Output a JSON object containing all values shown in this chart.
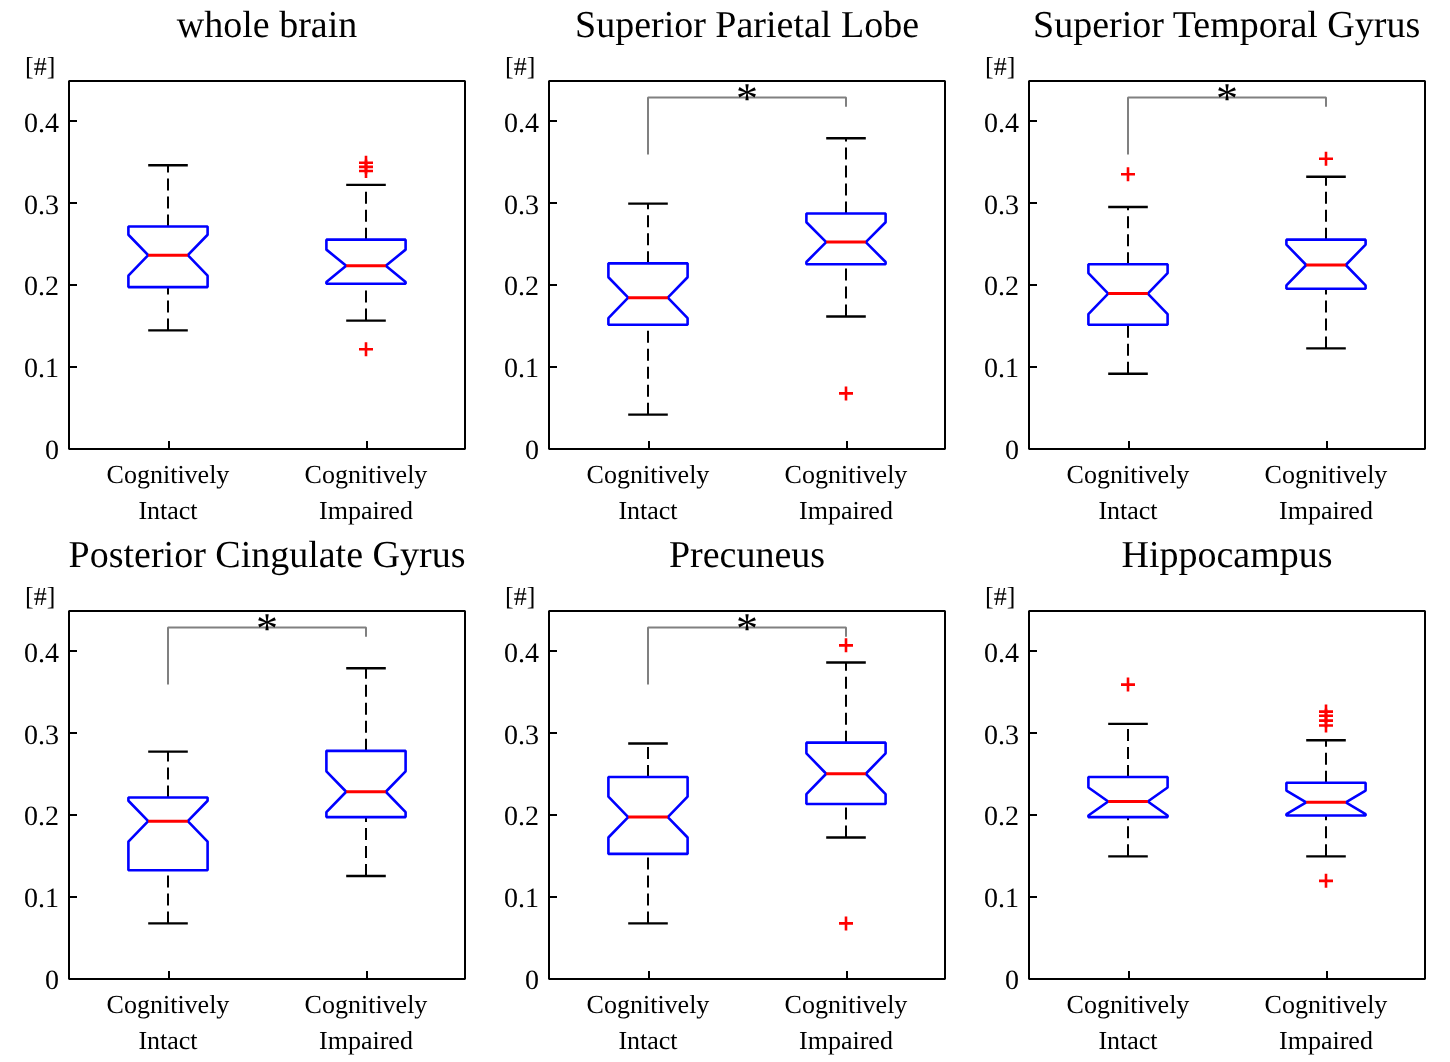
{
  "chart_data": [
    {
      "type": "box",
      "title": "whole brain",
      "ylabel": "[#]",
      "categories": [
        "Cognitively Intact",
        "Cognitively Impaired"
      ],
      "ylim": [
        0,
        0.45
      ],
      "yticks": [
        0,
        0.1,
        0.2,
        0.3,
        0.4
      ],
      "grid": false,
      "series": [
        {
          "color": "#0000ff",
          "boxes": [
            {
              "low": 0.145,
              "q1": 0.198,
              "median": 0.237,
              "q3": 0.272,
              "high": 0.347
            },
            {
              "low": 0.157,
              "q1": 0.202,
              "median": 0.224,
              "q3": 0.256,
              "high": 0.323,
              "outliers": [
                0.34,
                0.345,
                0.35,
                0.122
              ]
            }
          ]
        }
      ]
    },
    {
      "type": "box",
      "title": "Superior Parietal Lobe",
      "ylabel": "[#]",
      "categories": [
        "Cognitively Intact",
        "Cognitively Impaired"
      ],
      "ylim": [
        0,
        0.45
      ],
      "yticks": [
        0,
        0.1,
        0.2,
        0.3,
        0.4
      ],
      "grid": false,
      "annotations": [
        "*"
      ],
      "series": [
        {
          "color": "#0000ff",
          "boxes": [
            {
              "low": 0.042,
              "q1": 0.152,
              "median": 0.185,
              "q3": 0.227,
              "high": 0.3
            },
            {
              "low": 0.162,
              "q1": 0.226,
              "median": 0.253,
              "q3": 0.288,
              "high": 0.38,
              "outliers": [
                0.068
              ]
            }
          ]
        }
      ]
    },
    {
      "type": "box",
      "title": "Superior Temporal Gyrus",
      "ylabel": "[#]",
      "categories": [
        "Cognitively Intact",
        "Cognitively Impaired"
      ],
      "ylim": [
        0,
        0.45
      ],
      "yticks": [
        0,
        0.1,
        0.2,
        0.3,
        0.4
      ],
      "grid": false,
      "annotations": [
        "*"
      ],
      "series": [
        {
          "color": "#0000ff",
          "boxes": [
            {
              "low": 0.092,
              "q1": 0.152,
              "median": 0.19,
              "q3": 0.226,
              "high": 0.296,
              "outliers": [
                0.336
              ]
            },
            {
              "low": 0.123,
              "q1": 0.196,
              "median": 0.225,
              "q3": 0.256,
              "high": 0.333,
              "outliers": [
                0.355
              ]
            }
          ]
        }
      ]
    },
    {
      "type": "box",
      "title": "Posterior Cingulate Gyrus",
      "ylabel": "[#]",
      "categories": [
        "Cognitively Intact",
        "Cognitively Impaired"
      ],
      "ylim": [
        0,
        0.45
      ],
      "yticks": [
        0,
        0.1,
        0.2,
        0.3,
        0.4
      ],
      "grid": false,
      "annotations": [
        "*"
      ],
      "series": [
        {
          "color": "#0000ff",
          "boxes": [
            {
              "low": 0.068,
              "q1": 0.133,
              "median": 0.193,
              "q3": 0.222,
              "high": 0.278
            },
            {
              "low": 0.126,
              "q1": 0.198,
              "median": 0.229,
              "q3": 0.279,
              "high": 0.38
            }
          ]
        }
      ]
    },
    {
      "type": "box",
      "title": "Precuneus",
      "ylabel": "[#]",
      "categories": [
        "Cognitively Intact",
        "Cognitively Impaired"
      ],
      "ylim": [
        0,
        0.45
      ],
      "yticks": [
        0,
        0.1,
        0.2,
        0.3,
        0.4
      ],
      "grid": false,
      "annotations": [
        "*"
      ],
      "series": [
        {
          "color": "#0000ff",
          "boxes": [
            {
              "low": 0.068,
              "q1": 0.153,
              "median": 0.198,
              "q3": 0.247,
              "high": 0.288
            },
            {
              "low": 0.173,
              "q1": 0.214,
              "median": 0.251,
              "q3": 0.289,
              "high": 0.387,
              "outliers": [
                0.408,
                0.068
              ]
            }
          ]
        }
      ]
    },
    {
      "type": "box",
      "title": "Hippocampus",
      "ylabel": "[#]",
      "categories": [
        "Cognitively Intact",
        "Cognitively Impaired"
      ],
      "ylim": [
        0,
        0.45
      ],
      "yticks": [
        0,
        0.1,
        0.2,
        0.3,
        0.4
      ],
      "grid": false,
      "series": [
        {
          "color": "#0000ff",
          "boxes": [
            {
              "low": 0.15,
              "q1": 0.198,
              "median": 0.217,
              "q3": 0.247,
              "high": 0.312,
              "outliers": [
                0.36
              ]
            },
            {
              "low": 0.15,
              "q1": 0.2,
              "median": 0.216,
              "q3": 0.24,
              "high": 0.292,
              "outliers": [
                0.31,
                0.316,
                0.322,
                0.327,
                0.12
              ]
            }
          ]
        }
      ]
    }
  ]
}
